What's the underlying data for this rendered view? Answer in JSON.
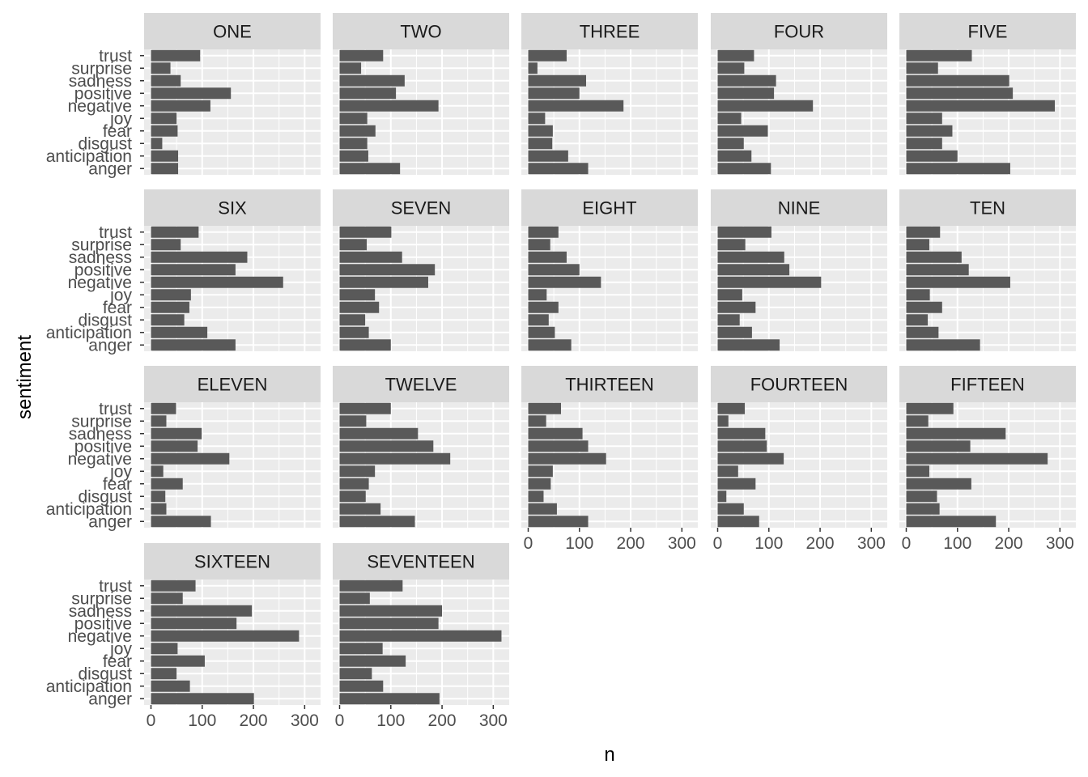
{
  "chart_data": {
    "type": "bar",
    "orientation": "horizontal",
    "faceted": true,
    "xlabel": "n",
    "ylabel": "sentiment",
    "xlim": [
      0,
      330
    ],
    "x_ticks": [
      0,
      100,
      200,
      300
    ],
    "grid": true,
    "categories": [
      "anger",
      "anticipation",
      "disgust",
      "fear",
      "joy",
      "negative",
      "positive",
      "sadness",
      "surprise",
      "trust"
    ],
    "panels": [
      {
        "name": "ONE",
        "values": [
          53,
          53,
          22,
          52,
          50,
          116,
          156,
          58,
          38,
          96
        ]
      },
      {
        "name": "TWO",
        "values": [
          118,
          56,
          54,
          70,
          54,
          193,
          110,
          127,
          42,
          85
        ]
      },
      {
        "name": "THREE",
        "values": [
          117,
          78,
          47,
          48,
          33,
          186,
          100,
          113,
          18,
          75
        ]
      },
      {
        "name": "FOUR",
        "values": [
          104,
          66,
          51,
          98,
          46,
          186,
          110,
          114,
          52,
          71
        ]
      },
      {
        "name": "FIVE",
        "values": [
          203,
          100,
          70,
          90,
          70,
          290,
          208,
          201,
          62,
          128
        ]
      },
      {
        "name": "SIX",
        "values": [
          165,
          110,
          65,
          75,
          78,
          258,
          165,
          188,
          58,
          93
        ]
      },
      {
        "name": "SEVEN",
        "values": [
          100,
          57,
          50,
          77,
          69,
          173,
          186,
          122,
          53,
          101
        ]
      },
      {
        "name": "EIGHT",
        "values": [
          84,
          52,
          40,
          59,
          36,
          142,
          100,
          75,
          43,
          59
        ]
      },
      {
        "name": "NINE",
        "values": [
          121,
          67,
          43,
          74,
          48,
          202,
          140,
          130,
          54,
          105
        ]
      },
      {
        "name": "TEN",
        "values": [
          144,
          63,
          42,
          70,
          46,
          203,
          122,
          108,
          45,
          66
        ]
      },
      {
        "name": "ELEVEN",
        "values": [
          117,
          30,
          28,
          62,
          24,
          153,
          91,
          99,
          30,
          49
        ]
      },
      {
        "name": "TWELVE",
        "values": [
          147,
          80,
          51,
          57,
          69,
          216,
          183,
          153,
          52,
          100
        ]
      },
      {
        "name": "THIRTEEN",
        "values": [
          117,
          56,
          30,
          44,
          48,
          152,
          117,
          106,
          35,
          64
        ]
      },
      {
        "name": "FOURTEEN",
        "values": [
          81,
          51,
          17,
          74,
          40,
          129,
          96,
          93,
          21,
          53
        ]
      },
      {
        "name": "FIFTEEN",
        "values": [
          175,
          65,
          60,
          127,
          45,
          276,
          125,
          194,
          43,
          92
        ]
      },
      {
        "name": "SIXTEEN",
        "values": [
          201,
          76,
          50,
          105,
          52,
          289,
          167,
          197,
          62,
          87
        ]
      },
      {
        "name": "SEVENTEEN",
        "values": [
          195,
          85,
          63,
          129,
          84,
          316,
          193,
          200,
          59,
          123
        ]
      }
    ]
  },
  "colors": {
    "panel_background": "#EBEBEB",
    "grid": "#FFFFFF",
    "strip_background": "#D9D9D9",
    "bar_fill": "#595959",
    "tick_text": "#4D4D4D",
    "tick_mark": "#333333"
  }
}
